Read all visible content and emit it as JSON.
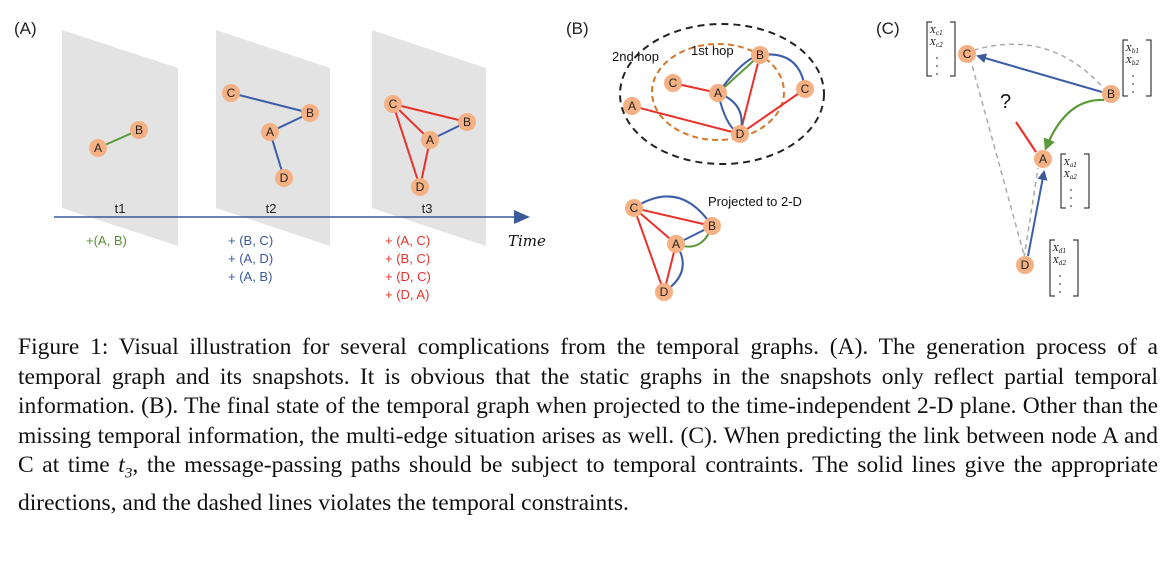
{
  "panels": {
    "a": {
      "label": "(A)",
      "axis_label": "Time",
      "snapshots": [
        {
          "time": "t1",
          "events": [
            {
              "text": "+(A, B)",
              "color": "#5a8f3a"
            }
          ]
        },
        {
          "time": "t2",
          "events": [
            {
              "text": "+ (B, C)",
              "color": "#3a5a9a"
            },
            {
              "text": "+ (A, D)",
              "color": "#3a5a9a"
            },
            {
              "text": "+ (A, B)",
              "color": "#3a5a9a"
            }
          ]
        },
        {
          "time": "t3",
          "events": [
            {
              "text": "+ (A, C)",
              "color": "#e8312a"
            },
            {
              "text": "+ (B, C)",
              "color": "#e8312a"
            },
            {
              "text": "+ (D, C)",
              "color": "#e8312a"
            },
            {
              "text": "+ (D, A)",
              "color": "#e8312a"
            }
          ]
        }
      ]
    },
    "b": {
      "label": "(B)",
      "hop2": "2nd hop",
      "hop1": "1st hop",
      "projected": "Projected to 2-D"
    },
    "c": {
      "label": "(C)",
      "question": "?",
      "vectors": {
        "c": [
          "X",
          "c1",
          "X",
          "c2"
        ],
        "b": [
          "X",
          "b1",
          "X",
          "b2"
        ],
        "a": [
          "X",
          "a1",
          "X",
          "a2"
        ],
        "d": [
          "X",
          "d1",
          "X",
          "d2"
        ]
      }
    }
  },
  "nodes": {
    "A": "A",
    "B": "B",
    "C": "C",
    "D": "D"
  },
  "colors": {
    "node": "#f5b184",
    "green": "#5a9a3a",
    "blue": "#3c5ea8",
    "red": "#e8312a",
    "panel": "#e3e3e3"
  },
  "caption": {
    "part1": "Figure 1: Visual illustration for several complications from the temporal graphs. (A). The generation process of a temporal graph and its snapshots. It is obvious that the static graphs in the snapshots only reflect partial temporal information. (B). The final state of the temporal graph when projected to the time-independent 2-D plane. Other than the missing temporal information, the multi-edge situation arises as well. (C). When predicting the link between node A and C at time ",
    "t3": "t",
    "t3_sub": "3",
    "part2": ", the message-passing paths should be subject to temporal contraints. The solid lines give the appropriate directions, and the dashed lines violates the temporal constraints."
  }
}
